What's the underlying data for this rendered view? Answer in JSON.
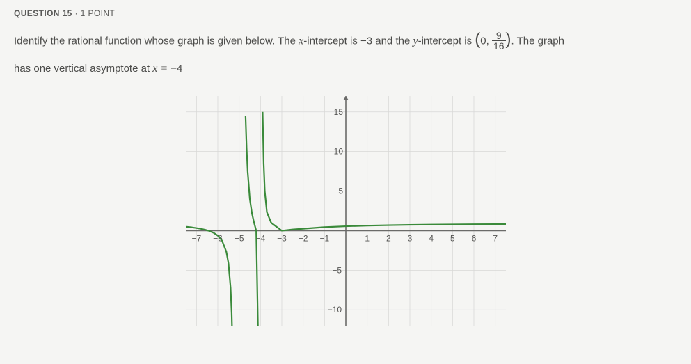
{
  "header": {
    "question_label": "QUESTION 15",
    "separator": "·",
    "points_label": "1 POINT"
  },
  "prompt": {
    "line1_a": "Identify the rational function whose graph is given below. The ",
    "x_var": "x",
    "line1_b": "-intercept is ",
    "x_intercept": "−3",
    "line1_c": " and the ",
    "y_var": "y",
    "line1_d": "-intercept is ",
    "paren_open": "(",
    "y_int_x": "0, ",
    "frac_num": "9",
    "frac_den": "16",
    "paren_close": ")",
    "line1_e": ". The graph",
    "line2_a": "has one vertical asymptote at ",
    "asymptote_lhs": "x = ",
    "asymptote_val": "−4"
  },
  "chart": {
    "type": "line",
    "x_ticks": [
      -7,
      -6,
      -5,
      -4,
      -3,
      -2,
      -1,
      1,
      2,
      3,
      4,
      5,
      6,
      7
    ],
    "y_ticks": [
      -10,
      -5,
      5,
      10,
      15
    ],
    "xlim": [
      -7.5,
      7.5
    ],
    "ylim": [
      -12,
      17
    ],
    "grid_color": "#d8d8d6",
    "axis_color": "#6b6b69",
    "tick_label_color": "#555553",
    "tick_fontsize": 12,
    "background_color": "#f5f5f3",
    "curve_color": "#3a8a3a",
    "curve_width": 2.2,
    "horizontal_asymptote_y": 1,
    "vertical_asymptote_x": -4,
    "curve_left_branch": [
      [
        -7.5,
        0.5
      ],
      [
        -7.2,
        0.41
      ],
      [
        -7.0,
        0.333
      ],
      [
        -6.8,
        0.24
      ],
      [
        -6.6,
        0.124
      ],
      [
        -6.4,
        -0.035
      ],
      [
        -6.2,
        -0.264
      ],
      [
        -6.0,
        -0.625
      ],
      [
        -5.8,
        -1.265
      ],
      [
        -5.6,
        -2.656
      ],
      [
        -5.5,
        -4.111
      ],
      [
        -5.4,
        -7.245
      ],
      [
        -5.35,
        -10.41
      ],
      [
        -5.31,
        -14.8
      ]
    ],
    "curve_middle_branch": [
      [
        -4.7,
        14.5
      ],
      [
        -4.65,
        10.41
      ],
      [
        -4.6,
        7.444
      ],
      [
        -4.5,
        4.0
      ],
      [
        -4.4,
        2.188
      ],
      [
        -4.3,
        1.0
      ],
      [
        -4.2,
        0.0
      ],
      [
        -4.1,
        -15.0
      ]
    ],
    "curve_right_branch": [
      [
        -3.9,
        15.0
      ],
      [
        -3.85,
        8.5
      ],
      [
        -3.8,
        5.0
      ],
      [
        -3.7,
        2.333
      ],
      [
        -3.5,
        1.0
      ],
      [
        -3.0,
        0.0
      ],
      [
        -2.5,
        0.148
      ],
      [
        -2.0,
        0.25
      ],
      [
        -1.0,
        0.444
      ],
      [
        0.0,
        0.5625
      ],
      [
        1.0,
        0.64
      ],
      [
        2.0,
        0.694
      ],
      [
        3.0,
        0.735
      ],
      [
        4.0,
        0.766
      ],
      [
        5.0,
        0.79
      ],
      [
        6.0,
        0.81
      ],
      [
        7.0,
        0.826
      ],
      [
        7.5,
        0.833
      ]
    ]
  }
}
